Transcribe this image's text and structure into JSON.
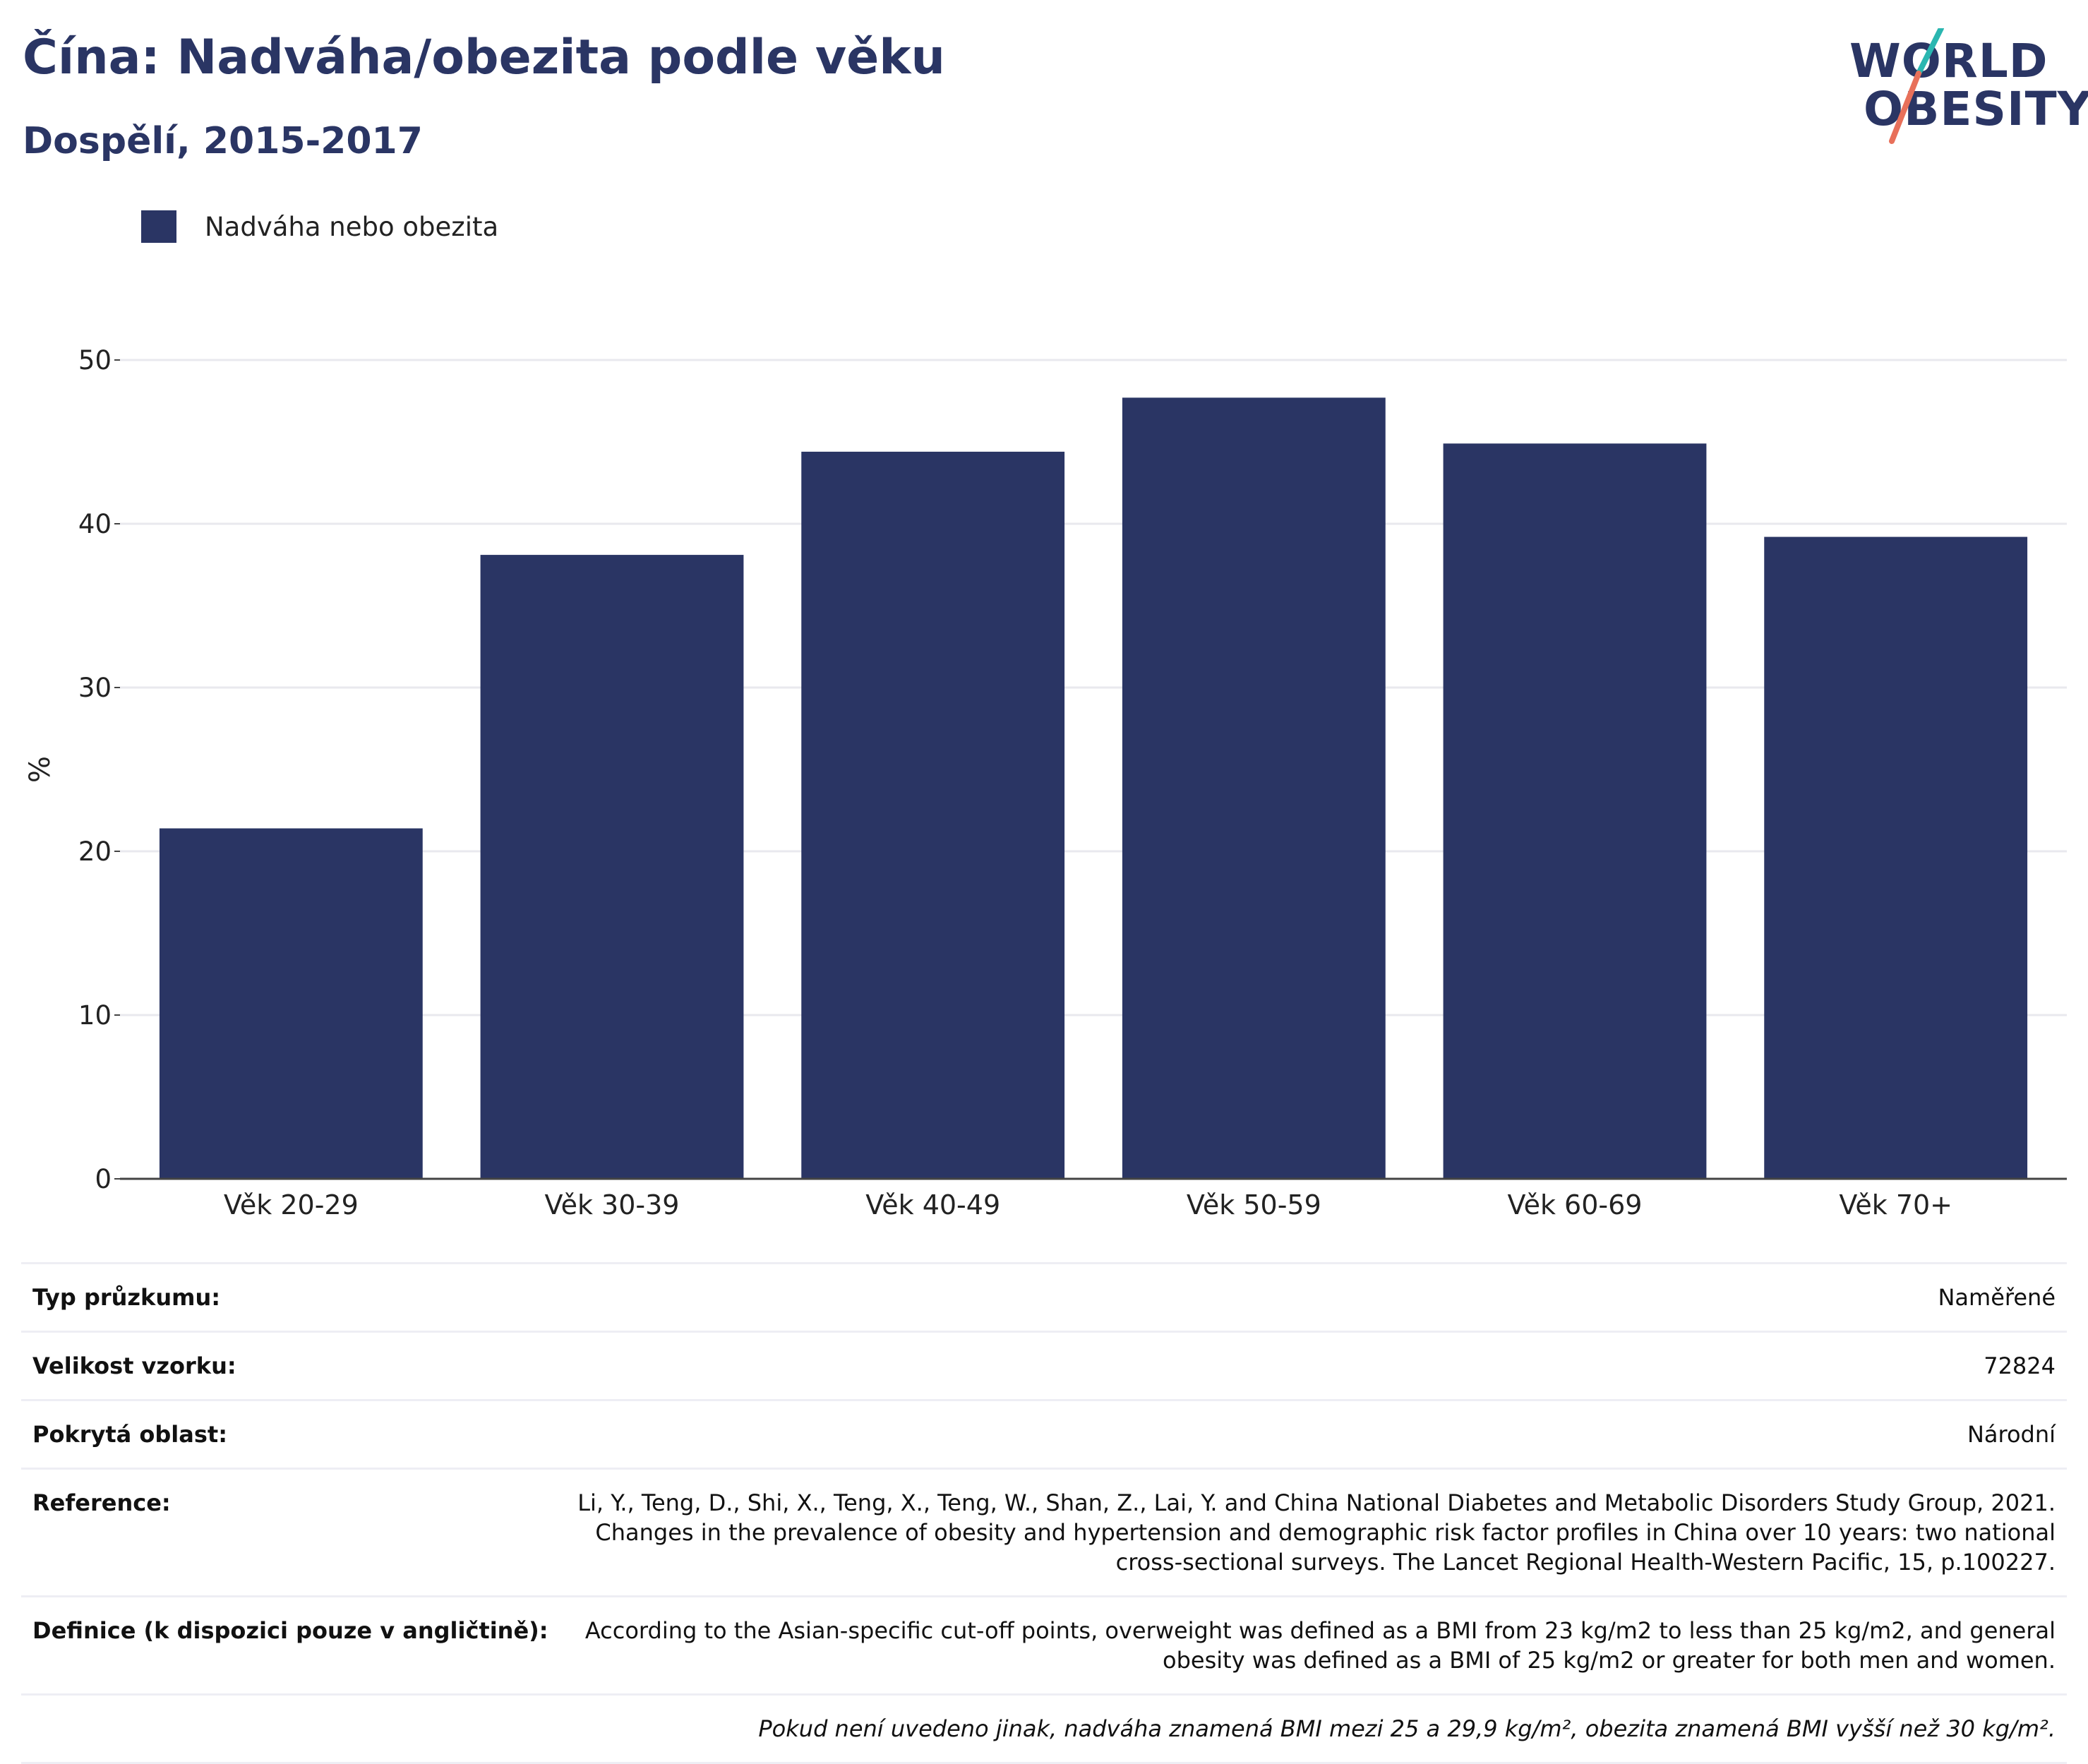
{
  "header": {
    "title": "Čína: Nadváha/obezita podle věku",
    "subtitle": "Dospělí, 2015-2017"
  },
  "logo": {
    "line1": "WORLD",
    "line2": "OBESITY",
    "accent_colors": [
      "#2ab6b0",
      "#e8705a"
    ]
  },
  "chart_data": {
    "type": "bar",
    "categories": [
      "Věk 20-29",
      "Věk 30-39",
      "Věk 40-49",
      "Věk 50-59",
      "Věk 60-69",
      "Věk 70+"
    ],
    "series": [
      {
        "name": "Nadváha nebo obezita",
        "values": [
          21.4,
          38.1,
          44.4,
          47.7,
          44.9,
          39.2
        ],
        "color": "#2a3564"
      }
    ],
    "ylabel": "%",
    "xlabel": "",
    "ylim": [
      0,
      50
    ],
    "yticks": [
      0,
      10,
      20,
      30,
      40,
      50
    ],
    "grid": true,
    "legend": "top-left"
  },
  "meta": {
    "rows": [
      {
        "key": "Typ průzkumu:",
        "value": "Naměřené"
      },
      {
        "key": "Velikost vzorku:",
        "value": "72824"
      },
      {
        "key": "Pokrytá oblast:",
        "value": "Národní"
      },
      {
        "key": "Reference:",
        "value": "Li, Y., Teng, D., Shi, X., Teng, X., Teng, W., Shan, Z., Lai, Y. and China National Diabetes and Metabolic Disorders Study Group, 2021. Changes in the prevalence of obesity and hypertension and demographic risk factor profiles in China over 10 years: two national cross-sectional surveys. The Lancet Regional Health-Western Pacific, 15, p.100227."
      },
      {
        "key": "Definice (k dispozici pouze v angličtině):",
        "value": "According to the Asian-specific cut-off points, overweight was defined as a BMI from 23 kg/m2 to less than 25 kg/m2, and general obesity was defined as a BMI of 25 kg/m2 or greater for both men and women."
      }
    ],
    "note": "Pokud není uvedeno jinak, nadváha znamená BMI mezi 25 a 29,9 kg/m², obezita znamená BMI vyšší než 30 kg/m²."
  }
}
